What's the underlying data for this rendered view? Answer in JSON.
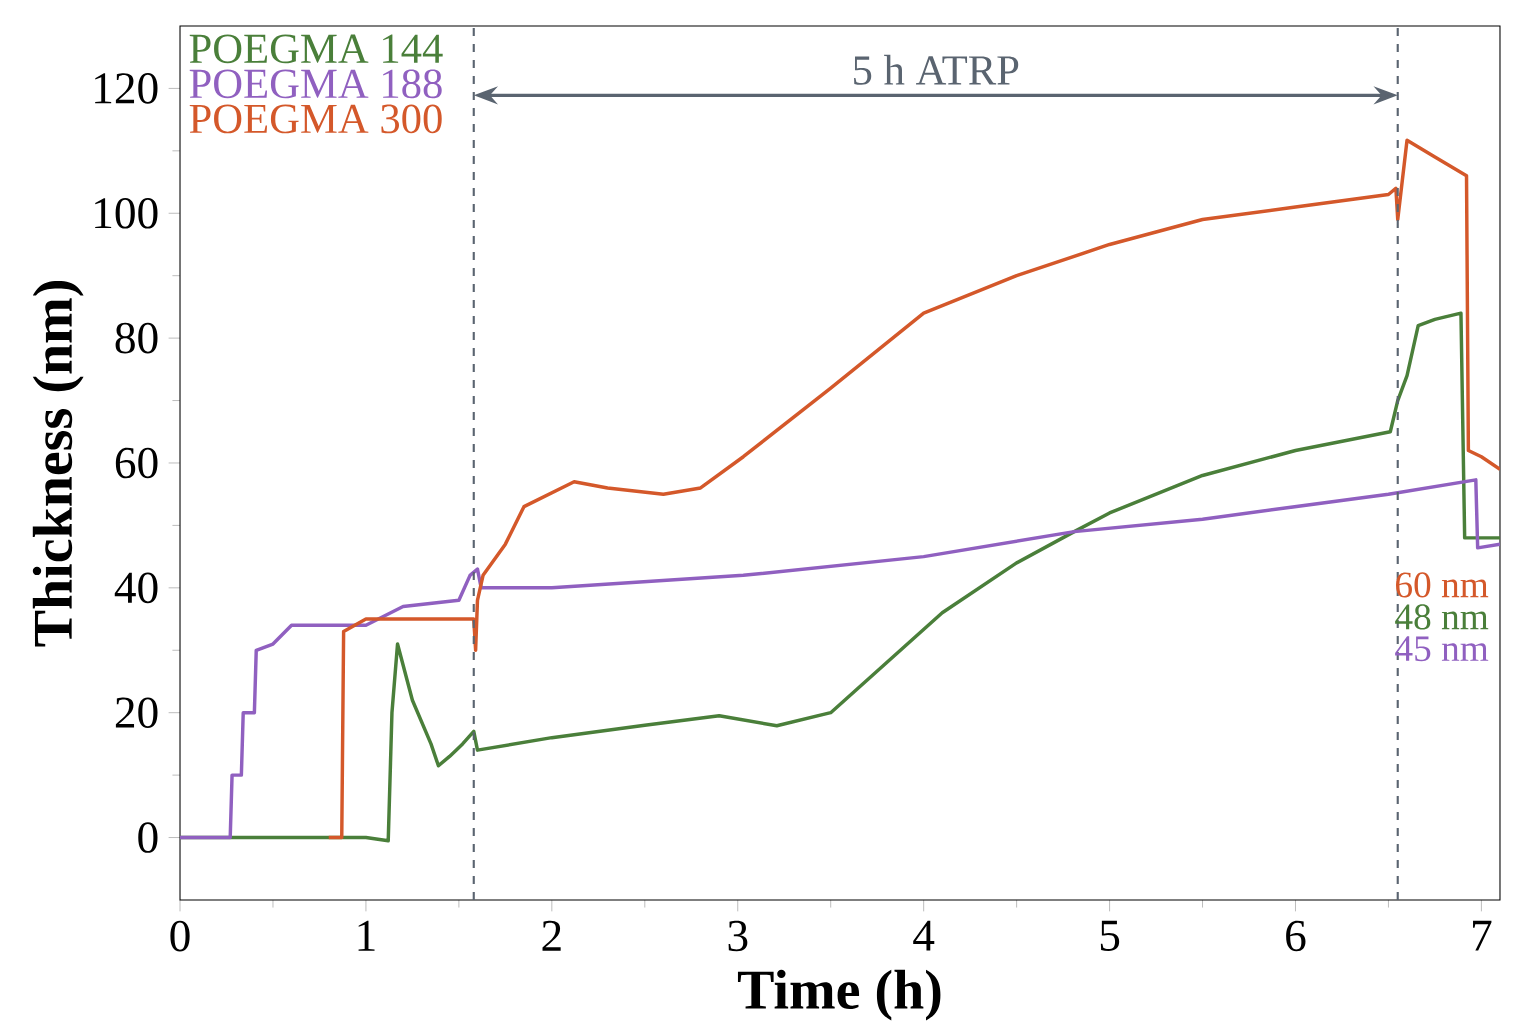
{
  "chart_data": {
    "type": "line",
    "xlabel": "Time (h)",
    "ylabel": "Thickness (nm)",
    "xlim": [
      0,
      7.1
    ],
    "ylim": [
      -10,
      130
    ],
    "xticks": [
      0,
      1,
      2,
      3,
      4,
      5,
      6,
      7
    ],
    "yticks": [
      0,
      20,
      40,
      60,
      80,
      100,
      120
    ],
    "grid": false,
    "legend": "top left",
    "marker": "none",
    "line_style": "solid",
    "series": [
      {
        "name": "POEGMA 144",
        "color": "#4a7f3a",
        "x": [
          0,
          1.0,
          1.12,
          1.14,
          1.17,
          1.25,
          1.35,
          1.39,
          1.45,
          1.52,
          1.58,
          1.6,
          2.0,
          2.5,
          2.9,
          3.21,
          3.5,
          3.8,
          4.1,
          4.5,
          4.81,
          5.0,
          5.5,
          6.0,
          6.51,
          6.55,
          6.6,
          6.66,
          6.75,
          6.89,
          6.91,
          7.1
        ],
        "values": [
          0,
          0,
          -0.5,
          20,
          31,
          22,
          15,
          11.5,
          13,
          15,
          17,
          14,
          16,
          18,
          19.5,
          17.9,
          20,
          28,
          36,
          44,
          49,
          52,
          58,
          62,
          65,
          70,
          74,
          82,
          83,
          84,
          48,
          48
        ]
      },
      {
        "name": "POEGMA 188",
        "color": "#9060c0",
        "x": [
          0,
          0.27,
          0.28,
          0.33,
          0.34,
          0.4,
          0.41,
          0.5,
          0.6,
          0.8,
          1.0,
          1.2,
          1.5,
          1.56,
          1.6,
          1.62,
          2.0,
          3.03,
          4.0,
          4.81,
          5.5,
          6.5,
          6.97,
          6.98,
          7.1
        ],
        "values": [
          0,
          0,
          10,
          10,
          20,
          20,
          30,
          31,
          34,
          34,
          34,
          37,
          38,
          42,
          43,
          40,
          40,
          42,
          45,
          49,
          51,
          55,
          57.3,
          46.4,
          47
        ]
      },
      {
        "name": "POEGMA 300",
        "color": "#d4582a",
        "x": [
          0.8,
          0.87,
          0.88,
          1.0,
          1.3,
          1.58,
          1.59,
          1.6,
          1.63,
          1.75,
          1.85,
          2.12,
          2.3,
          2.6,
          2.8,
          3.03,
          3.5,
          4.0,
          4.5,
          5.0,
          5.5,
          6.0,
          6.5,
          6.54,
          6.55,
          6.6,
          6.75,
          6.92,
          6.93,
          7.0,
          7.1
        ],
        "values": [
          0,
          0,
          33,
          35,
          35,
          35,
          30,
          38,
          42,
          47,
          53,
          57,
          56,
          55,
          56,
          61,
          72,
          84,
          90,
          95,
          99,
          101,
          103,
          104,
          99,
          111.7,
          109,
          106,
          62,
          61,
          59
        ]
      }
    ],
    "ref_lines": [
      {
        "axis": "x",
        "value": 1.58,
        "color": "#5a6470",
        "line_style": "dashed"
      },
      {
        "axis": "x",
        "value": 6.55,
        "color": "#5a6470",
        "line_style": "dashed"
      }
    ],
    "annotations": [
      "5 h ATRP",
      "60 nm",
      "48 nm",
      "45 nm"
    ]
  }
}
